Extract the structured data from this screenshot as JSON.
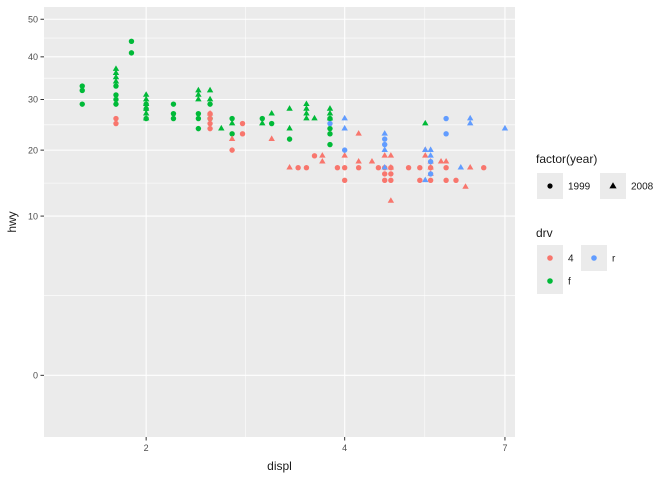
{
  "chart_data": {
    "type": "scatter",
    "xlabel": "displ",
    "ylabel": "hwy",
    "x_ticks": [
      2,
      4,
      7
    ],
    "y_ticks": [
      0,
      10,
      20,
      30,
      40,
      50
    ],
    "xlim": [
      1.4,
      7.25
    ],
    "ylim": [
      -1.5,
      53.5
    ],
    "y_scale": "sqrt",
    "grid": true,
    "background": "#ebebeb",
    "legend_position": "right",
    "legends": [
      {
        "title": "factor(year)",
        "entries": [
          {
            "label": "1999",
            "shape": "circle"
          },
          {
            "label": "2008",
            "shape": "triangle"
          }
        ]
      },
      {
        "title": "drv",
        "entries": [
          {
            "label": "4",
            "color": "#F8766D"
          },
          {
            "label": "r",
            "color": "#619CFF"
          },
          {
            "label": "f",
            "color": "#00BA38"
          }
        ]
      }
    ],
    "colors": {
      "4": "#F8766D",
      "f": "#00BA38",
      "r": "#619CFF"
    },
    "series": [
      {
        "drv": "f",
        "year": "1999",
        "points": [
          [
            1.6,
            33
          ],
          [
            1.6,
            32
          ],
          [
            1.6,
            29
          ],
          [
            1.8,
            29
          ],
          [
            1.8,
            30
          ],
          [
            1.8,
            31
          ],
          [
            1.8,
            33
          ],
          [
            1.9,
            44
          ],
          [
            1.9,
            41
          ],
          [
            2.0,
            26
          ],
          [
            2.0,
            28
          ],
          [
            2.0,
            29
          ],
          [
            2.2,
            26
          ],
          [
            2.2,
            27
          ],
          [
            2.2,
            29
          ],
          [
            2.4,
            24
          ],
          [
            2.4,
            26
          ],
          [
            2.4,
            27
          ],
          [
            2.5,
            26
          ],
          [
            2.5,
            29
          ],
          [
            2.7,
            23
          ],
          [
            2.7,
            26
          ],
          [
            3.0,
            26
          ],
          [
            3.1,
            25
          ],
          [
            3.3,
            22
          ],
          [
            3.8,
            26
          ],
          [
            3.8,
            24
          ],
          [
            3.8,
            23
          ],
          [
            3.8,
            21
          ]
        ]
      },
      {
        "drv": "f",
        "year": "2008",
        "points": [
          [
            1.8,
            35
          ],
          [
            1.8,
            36
          ],
          [
            1.8,
            37
          ],
          [
            1.8,
            34
          ],
          [
            2.0,
            31
          ],
          [
            2.0,
            30
          ],
          [
            2.0,
            29
          ],
          [
            2.0,
            28
          ],
          [
            2.0,
            27
          ],
          [
            2.0,
            26
          ],
          [
            2.4,
            31
          ],
          [
            2.4,
            32
          ],
          [
            2.4,
            30
          ],
          [
            2.5,
            32
          ],
          [
            2.5,
            30
          ],
          [
            2.6,
            24
          ],
          [
            2.7,
            25
          ],
          [
            3.0,
            25
          ],
          [
            3.1,
            27
          ],
          [
            3.3,
            28
          ],
          [
            3.3,
            24
          ],
          [
            3.5,
            29
          ],
          [
            3.5,
            28
          ],
          [
            3.5,
            27
          ],
          [
            3.5,
            26
          ],
          [
            3.6,
            26
          ],
          [
            3.8,
            28
          ],
          [
            3.8,
            27
          ],
          [
            3.8,
            26
          ],
          [
            5.3,
            25
          ]
        ]
      },
      {
        "drv": "4",
        "year": "1999",
        "points": [
          [
            1.8,
            26
          ],
          [
            1.8,
            25
          ],
          [
            2.5,
            25
          ],
          [
            2.5,
            24
          ],
          [
            2.5,
            26
          ],
          [
            2.5,
            27
          ],
          [
            2.7,
            20
          ],
          [
            2.8,
            23
          ],
          [
            2.8,
            25
          ],
          [
            3.4,
            17
          ],
          [
            3.5,
            17
          ],
          [
            3.6,
            19
          ],
          [
            3.9,
            17
          ],
          [
            4.0,
            15
          ],
          [
            4.0,
            17
          ],
          [
            4.2,
            17
          ],
          [
            4.5,
            17
          ],
          [
            4.6,
            15
          ],
          [
            4.6,
            17
          ],
          [
            4.6,
            16
          ],
          [
            4.7,
            16
          ],
          [
            4.7,
            17
          ],
          [
            4.7,
            15
          ],
          [
            5.0,
            17
          ],
          [
            5.2,
            17
          ],
          [
            5.2,
            15
          ],
          [
            5.4,
            17
          ],
          [
            5.4,
            15
          ],
          [
            5.7,
            17
          ],
          [
            5.7,
            15
          ],
          [
            5.9,
            15
          ],
          [
            6.5,
            17
          ]
        ]
      },
      {
        "drv": "4",
        "year": "2008",
        "points": [
          [
            2.5,
            27
          ],
          [
            2.7,
            22
          ],
          [
            3.1,
            22
          ],
          [
            3.3,
            17
          ],
          [
            3.7,
            19
          ],
          [
            3.7,
            18
          ],
          [
            4.0,
            19
          ],
          [
            4.2,
            23
          ],
          [
            4.2,
            18
          ],
          [
            4.4,
            18
          ],
          [
            4.6,
            19
          ],
          [
            4.7,
            19
          ],
          [
            4.7,
            12
          ],
          [
            4.7,
            17
          ],
          [
            5.3,
            20
          ],
          [
            5.3,
            19
          ],
          [
            5.4,
            18
          ],
          [
            5.4,
            16
          ],
          [
            5.4,
            17
          ],
          [
            5.6,
            18
          ],
          [
            5.7,
            18
          ],
          [
            6.1,
            14
          ],
          [
            6.2,
            17
          ]
        ]
      },
      {
        "drv": "r",
        "year": "1999",
        "points": [
          [
            3.8,
            25
          ],
          [
            4.0,
            20
          ],
          [
            4.6,
            22
          ],
          [
            4.6,
            21
          ],
          [
            5.4,
            18
          ],
          [
            5.4,
            16
          ],
          [
            5.7,
            26
          ],
          [
            5.7,
            23
          ]
        ]
      },
      {
        "drv": "r",
        "year": "2008",
        "points": [
          [
            4.0,
            26
          ],
          [
            4.0,
            24
          ],
          [
            4.6,
            23
          ],
          [
            4.6,
            20
          ],
          [
            4.6,
            17
          ],
          [
            5.3,
            20
          ],
          [
            5.3,
            15
          ],
          [
            5.4,
            20
          ],
          [
            5.4,
            19
          ],
          [
            6.0,
            17
          ],
          [
            6.2,
            26
          ],
          [
            6.2,
            25
          ],
          [
            7.0,
            24
          ]
        ]
      }
    ]
  }
}
